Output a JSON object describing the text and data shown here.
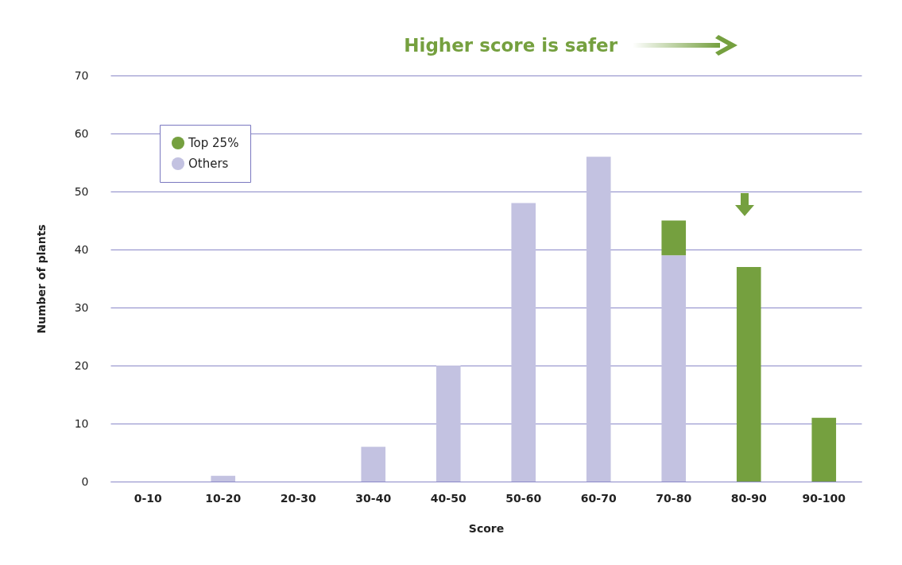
{
  "chart_data": {
    "type": "bar",
    "stacked": true,
    "categories": [
      "0-10",
      "10-20",
      "20-30",
      "30-40",
      "40-50",
      "50-60",
      "60-70",
      "70-80",
      "80-90",
      "90-100"
    ],
    "series": [
      {
        "name": "Others",
        "color": "#c3c2e1",
        "values": [
          0,
          1,
          0,
          6,
          20,
          48,
          56,
          39,
          0,
          0
        ]
      },
      {
        "name": "Top 25%",
        "color": "#75a03f",
        "values": [
          0,
          0,
          0,
          0,
          0,
          0,
          0,
          6,
          37,
          11
        ]
      }
    ],
    "xlabel": "Score",
    "ylabel": "Number of plants",
    "ylim": [
      0,
      70
    ],
    "yticks": [
      0,
      10,
      20,
      30,
      40,
      50,
      60,
      70
    ],
    "grid": "y",
    "legend": "top left",
    "annotations": [
      "Higher score is safer"
    ]
  }
}
